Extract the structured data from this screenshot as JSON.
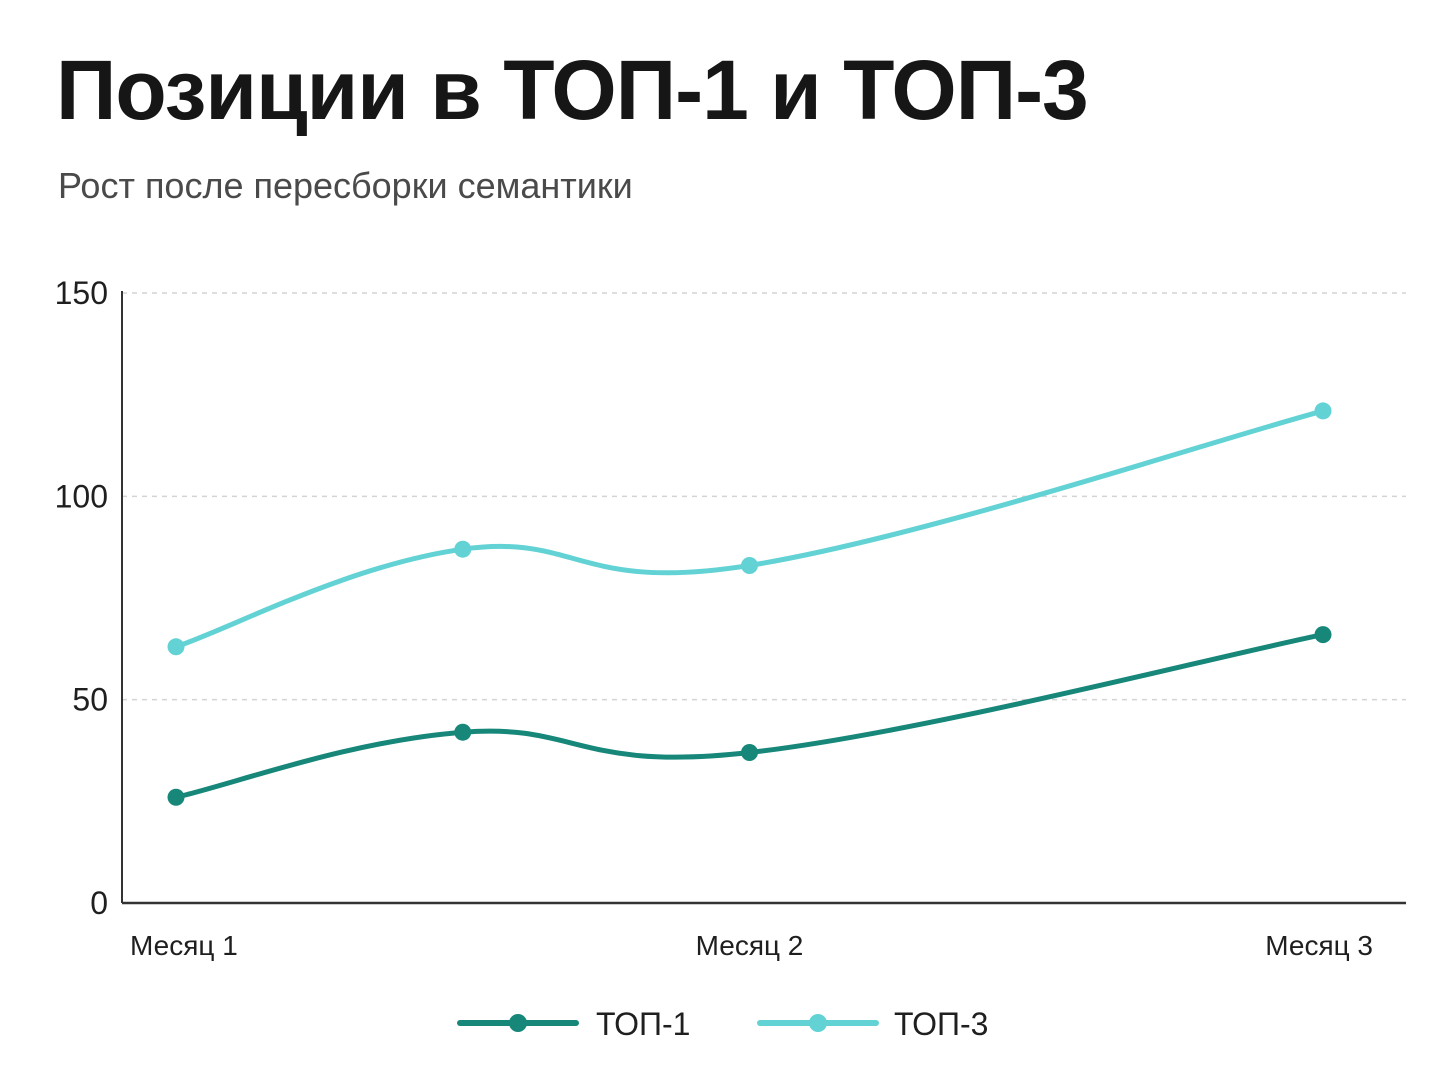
{
  "chart_data": {
    "type": "line",
    "title": "Позиции в ТОП-1 и ТОП-3",
    "subtitle": "Рост после пересборки семантики",
    "xlabel": "",
    "ylabel": "",
    "ylim": [
      0,
      150
    ],
    "yticks": [
      "0",
      "50",
      "100",
      "150"
    ],
    "x": [
      1,
      1.5,
      2,
      3
    ],
    "categories": [
      "Месяц 1",
      "Месяц 2",
      "Месяц 3"
    ],
    "category_positions": [
      1,
      2,
      3
    ],
    "grid": true,
    "legend": "bottom-center",
    "series": [
      {
        "name": "ТОП-1",
        "color": "#17877a",
        "values": [
          26,
          42,
          37,
          66
        ]
      },
      {
        "name": "ТОП-3",
        "color": "#62d2d4",
        "values": [
          63,
          87,
          83,
          121
        ]
      }
    ]
  }
}
